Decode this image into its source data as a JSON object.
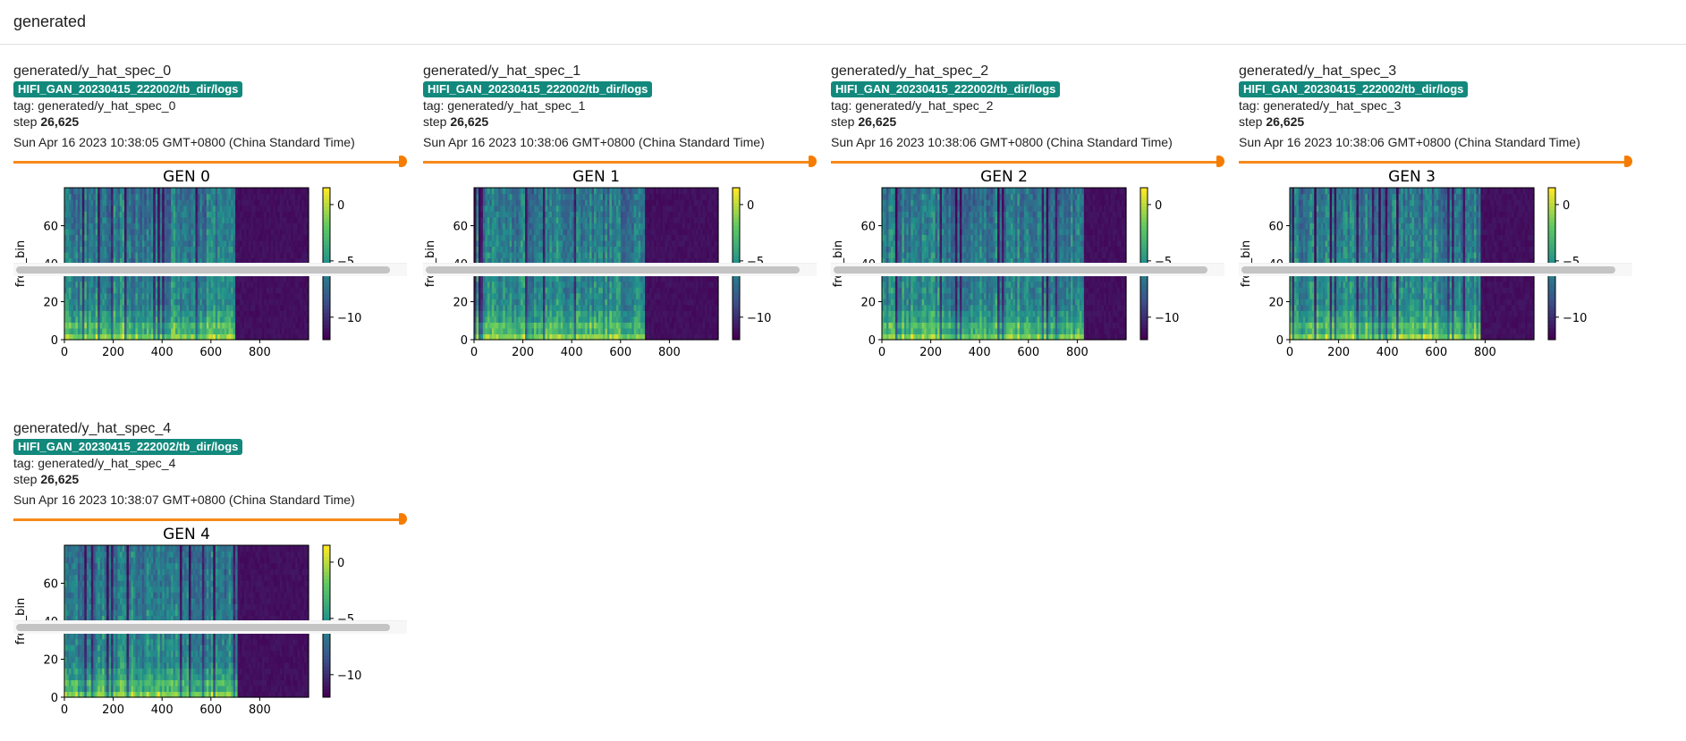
{
  "section": {
    "title": "generated"
  },
  "run_name": "HIFI_GAN_20230415_222002/tb_dir/logs",
  "tag_prefix": "tag: ",
  "step_prefix": "step ",
  "colormap": [
    "#440154",
    "#3b528b",
    "#21918c",
    "#5ec962",
    "#fde725"
  ],
  "cards": [
    {
      "title": "generated/y_hat_spec_0",
      "tag": "generated/y_hat_spec_0",
      "step": "26,625",
      "timestamp": "Sun Apr 16 2023 10:38:05 GMT+0800 (China Standard Time)",
      "slider_position": 1.0,
      "figure": {
        "title": "GEN 0",
        "ylabel": "freq_bin",
        "x_ticks": [
          "0",
          "200",
          "400",
          "600",
          "800"
        ],
        "y_ticks": [
          "0",
          "20",
          "40",
          "60"
        ],
        "colorbar_ticks": [
          "0",
          "−5",
          "−10"
        ],
        "speech_end_frame": 700
      }
    },
    {
      "title": "generated/y_hat_spec_1",
      "tag": "generated/y_hat_spec_1",
      "step": "26,625",
      "timestamp": "Sun Apr 16 2023 10:38:06 GMT+0800 (China Standard Time)",
      "slider_position": 1.0,
      "figure": {
        "title": "GEN 1",
        "ylabel": "freq_bin",
        "x_ticks": [
          "0",
          "200",
          "400",
          "600",
          "800"
        ],
        "y_ticks": [
          "0",
          "20",
          "40",
          "60"
        ],
        "colorbar_ticks": [
          "0",
          "−5",
          "−10"
        ],
        "speech_end_frame": 700
      }
    },
    {
      "title": "generated/y_hat_spec_2",
      "tag": "generated/y_hat_spec_2",
      "step": "26,625",
      "timestamp": "Sun Apr 16 2023 10:38:06 GMT+0800 (China Standard Time)",
      "slider_position": 1.0,
      "figure": {
        "title": "GEN 2",
        "ylabel": "freq_bin",
        "x_ticks": [
          "0",
          "200",
          "400",
          "600",
          "800"
        ],
        "y_ticks": [
          "0",
          "20",
          "40",
          "60"
        ],
        "colorbar_ticks": [
          "0",
          "−5",
          "−10"
        ],
        "speech_end_frame": 830
      }
    },
    {
      "title": "generated/y_hat_spec_3",
      "tag": "generated/y_hat_spec_3",
      "step": "26,625",
      "timestamp": "Sun Apr 16 2023 10:38:06 GMT+0800 (China Standard Time)",
      "slider_position": 1.0,
      "figure": {
        "title": "GEN 3",
        "ylabel": "freq_bin",
        "x_ticks": [
          "0",
          "200",
          "400",
          "600",
          "800"
        ],
        "y_ticks": [
          "0",
          "20",
          "40",
          "60"
        ],
        "colorbar_ticks": [
          "0",
          "−5",
          "−10"
        ],
        "speech_end_frame": 780
      }
    },
    {
      "title": "generated/y_hat_spec_4",
      "tag": "generated/y_hat_spec_4",
      "step": "26,625",
      "timestamp": "Sun Apr 16 2023 10:38:07 GMT+0800 (China Standard Time)",
      "slider_position": 1.0,
      "figure": {
        "title": "GEN 4",
        "ylabel": "freq_bin",
        "x_ticks": [
          "0",
          "200",
          "400",
          "600",
          "800"
        ],
        "y_ticks": [
          "0",
          "20",
          "40",
          "60"
        ],
        "colorbar_ticks": [
          "0",
          "−5",
          "−10"
        ],
        "speech_end_frame": 710
      }
    }
  ]
}
